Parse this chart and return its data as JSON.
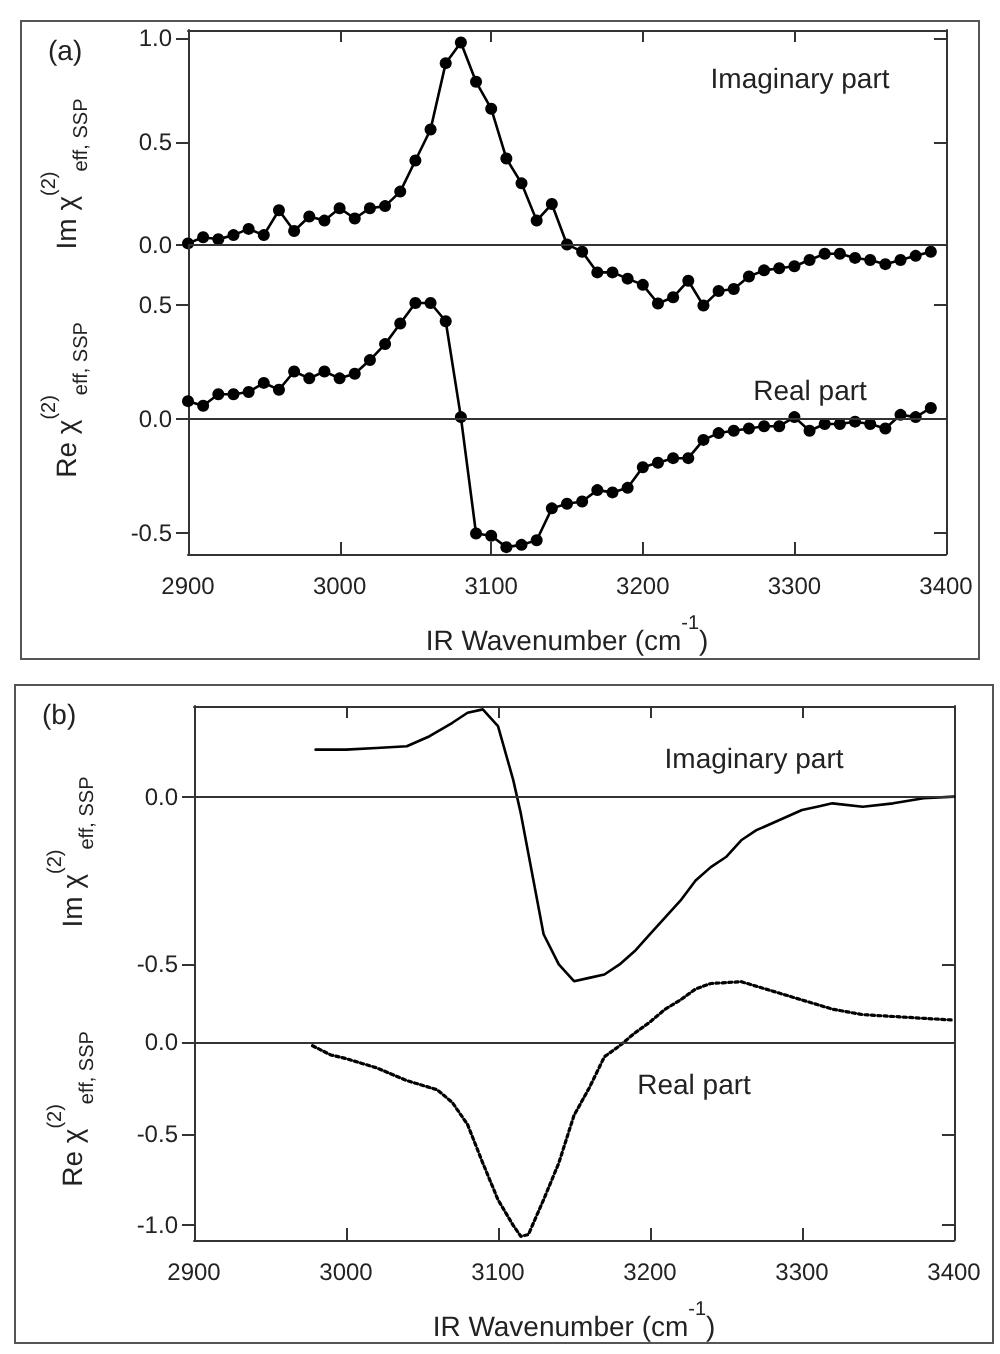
{
  "chart_data": [
    {
      "type": "line",
      "ylabel": "Im χ$^{(2)}$$_{eff, SSP}$",
      "annotations": [
        "(a)",
        "Imaginary part"
      ],
      "xlim": [
        2900,
        3400
      ],
      "xticks": [
        2900,
        3000,
        3100,
        3200,
        3300,
        3400
      ],
      "ylim": [
        -0.35,
        1.04
      ],
      "yticks": [
        {
          "value": 0,
          "label": "0.0"
        },
        {
          "value": 0.5,
          "label": "0.5"
        },
        {
          "value": 1,
          "label": "1.0"
        }
      ],
      "tick_labels": "y",
      "marker": "circle",
      "line_style": "solid",
      "ref_lines": [
        {
          "axis": "y",
          "value": 0
        }
      ],
      "series": [
        {
          "color": "#000000",
          "x": [
            2900,
            2910,
            2920,
            2930,
            2940,
            2950,
            2960,
            2970,
            2980,
            2990,
            3000,
            3010,
            3020,
            3030,
            3040,
            3050,
            3060,
            3070,
            3080,
            3090,
            3100,
            3110,
            3120,
            3130,
            3140,
            3150,
            3160,
            3170,
            3180,
            3190,
            3200,
            3210,
            3220,
            3230,
            3240,
            3250,
            3260,
            3270,
            3280,
            3290,
            3300,
            3310,
            3320,
            3330,
            3340,
            3350,
            3360,
            3370,
            3380,
            3390
          ],
          "values": [
            0.01,
            0.04,
            0.03,
            0.05,
            0.08,
            0.05,
            0.17,
            0.07,
            0.14,
            0.12,
            0.18,
            0.13,
            0.18,
            0.19,
            0.26,
            0.41,
            0.56,
            0.88,
            0.98,
            0.79,
            0.66,
            0.42,
            0.3,
            0.12,
            0.2,
            0.005,
            -0.03,
            -0.13,
            -0.13,
            -0.16,
            -0.19,
            -0.28,
            -0.25,
            -0.17,
            -0.29,
            -0.22,
            -0.21,
            -0.15,
            -0.12,
            -0.11,
            -0.1,
            -0.07,
            -0.04,
            -0.04,
            -0.06,
            -0.07,
            -0.09,
            -0.07,
            -0.05,
            -0.03
          ]
        }
      ]
    },
    {
      "type": "line",
      "ylabel": "Re χ$^{(2)}$$_{eff, SSP}$",
      "xlabel": "IR Wavenumber (cm$^{-1}$)",
      "annotations": [
        "Real part"
      ],
      "xlim": [
        2900,
        3400
      ],
      "xticks": [
        2900,
        3000,
        3100,
        3200,
        3300,
        3400
      ],
      "ylim": [
        -0.59,
        0.76
      ],
      "yticks": [
        {
          "value": -0.5,
          "label": "-0.5"
        },
        {
          "value": 0,
          "label": "0.0"
        },
        {
          "value": 0.5,
          "label": "0.5"
        }
      ],
      "marker": "circle",
      "line_style": "solid",
      "ref_lines": [
        {
          "axis": "y",
          "value": 0
        }
      ],
      "series": [
        {
          "color": "#000000",
          "x": [
            2900,
            2910,
            2920,
            2930,
            2940,
            2950,
            2960,
            2970,
            2980,
            2990,
            3000,
            3010,
            3020,
            3030,
            3040,
            3050,
            3060,
            3070,
            3080,
            3090,
            3100,
            3110,
            3120,
            3130,
            3140,
            3150,
            3160,
            3170,
            3180,
            3190,
            3200,
            3210,
            3220,
            3230,
            3240,
            3250,
            3260,
            3270,
            3280,
            3290,
            3300,
            3310,
            3320,
            3330,
            3340,
            3350,
            3360,
            3370,
            3380,
            3390
          ],
          "values": [
            0.08,
            0.06,
            0.11,
            0.11,
            0.12,
            0.16,
            0.13,
            0.21,
            0.18,
            0.21,
            0.18,
            0.2,
            0.26,
            0.33,
            0.42,
            0.51,
            0.51,
            0.43,
            0.01,
            -0.5,
            -0.51,
            -0.56,
            -0.55,
            -0.53,
            -0.39,
            -0.37,
            -0.36,
            -0.31,
            -0.32,
            -0.3,
            -0.21,
            -0.19,
            -0.17,
            -0.17,
            -0.09,
            -0.06,
            -0.05,
            -0.04,
            -0.03,
            -0.03,
            0.01,
            -0.05,
            -0.02,
            -0.02,
            -0.01,
            -0.02,
            -0.04,
            0.02,
            0.01,
            0.05
          ]
        }
      ]
    },
    {
      "type": "line",
      "ylabel": "Im χ$^{(2)}$$_{eff, SSP}$",
      "annotations": [
        "(b)",
        "Imaginary part"
      ],
      "xlim": [
        2900,
        3400
      ],
      "xticks": [
        2900,
        3000,
        3100,
        3200,
        3300,
        3400
      ],
      "ylim": [
        -0.6,
        0.27
      ],
      "yticks": [
        {
          "value": -0.5,
          "label": "-0.5"
        },
        {
          "value": 0,
          "label": "0.0"
        }
      ],
      "tick_labels": "y",
      "marker": "none",
      "line_style": "solid",
      "ref_lines": [
        {
          "axis": "y",
          "value": 0
        }
      ],
      "series": [
        {
          "color": "#000000",
          "x": [
            2980,
            3000,
            3020,
            3040,
            3055,
            3070,
            3080,
            3090,
            3100,
            3110,
            3115,
            3120,
            3130,
            3140,
            3150,
            3160,
            3170,
            3180,
            3190,
            3200,
            3210,
            3220,
            3230,
            3240,
            3250,
            3260,
            3270,
            3280,
            3290,
            3300,
            3310,
            3320,
            3340,
            3360,
            3380,
            3400
          ],
          "values": [
            0.14,
            0.14,
            0.145,
            0.15,
            0.18,
            0.22,
            0.25,
            0.26,
            0.21,
            0.05,
            -0.05,
            -0.17,
            -0.41,
            -0.5,
            -0.55,
            -0.54,
            -0.53,
            -0.5,
            -0.46,
            -0.41,
            -0.36,
            -0.31,
            -0.25,
            -0.21,
            -0.18,
            -0.13,
            -0.1,
            -0.08,
            -0.06,
            -0.04,
            -0.03,
            -0.02,
            -0.03,
            -0.02,
            -0.005,
            0
          ]
        }
      ]
    },
    {
      "type": "line",
      "ylabel": "Re χ$^{(2)}$$_{eff, SSP}$",
      "xlabel": "IR Wavenumber (cm$^{-1}$)",
      "annotations": [
        "Real part"
      ],
      "xlim": [
        2900,
        3400
      ],
      "xticks": [
        2900,
        3000,
        3100,
        3200,
        3300,
        3400
      ],
      "ylim": [
        -1.08,
        0.35
      ],
      "yticks": [
        {
          "value": -1,
          "label": "-1.0"
        },
        {
          "value": -0.5,
          "label": "-0.5"
        },
        {
          "value": 0,
          "label": "0.0"
        }
      ],
      "marker": "none",
      "line_style": "dotted",
      "ref_lines": [
        {
          "axis": "y",
          "value": 0
        }
      ],
      "series": [
        {
          "color": "#000000",
          "x": [
            2978,
            2990,
            3000,
            3020,
            3040,
            3060,
            3070,
            3080,
            3090,
            3100,
            3110,
            3115,
            3120,
            3130,
            3140,
            3150,
            3160,
            3170,
            3180,
            3190,
            3200,
            3210,
            3220,
            3230,
            3240,
            3260,
            3280,
            3300,
            3320,
            3340,
            3360,
            3380,
            3400
          ],
          "values": [
            -0.02,
            -0.07,
            -0.09,
            -0.14,
            -0.21,
            -0.26,
            -0.33,
            -0.45,
            -0.66,
            -0.86,
            -1.0,
            -1.06,
            -1.05,
            -0.86,
            -0.66,
            -0.4,
            -0.25,
            -0.08,
            -0.02,
            0.05,
            0.11,
            0.18,
            0.23,
            0.29,
            0.32,
            0.33,
            0.28,
            0.23,
            0.18,
            0.15,
            0.14,
            0.13,
            0.12
          ]
        }
      ]
    }
  ]
}
